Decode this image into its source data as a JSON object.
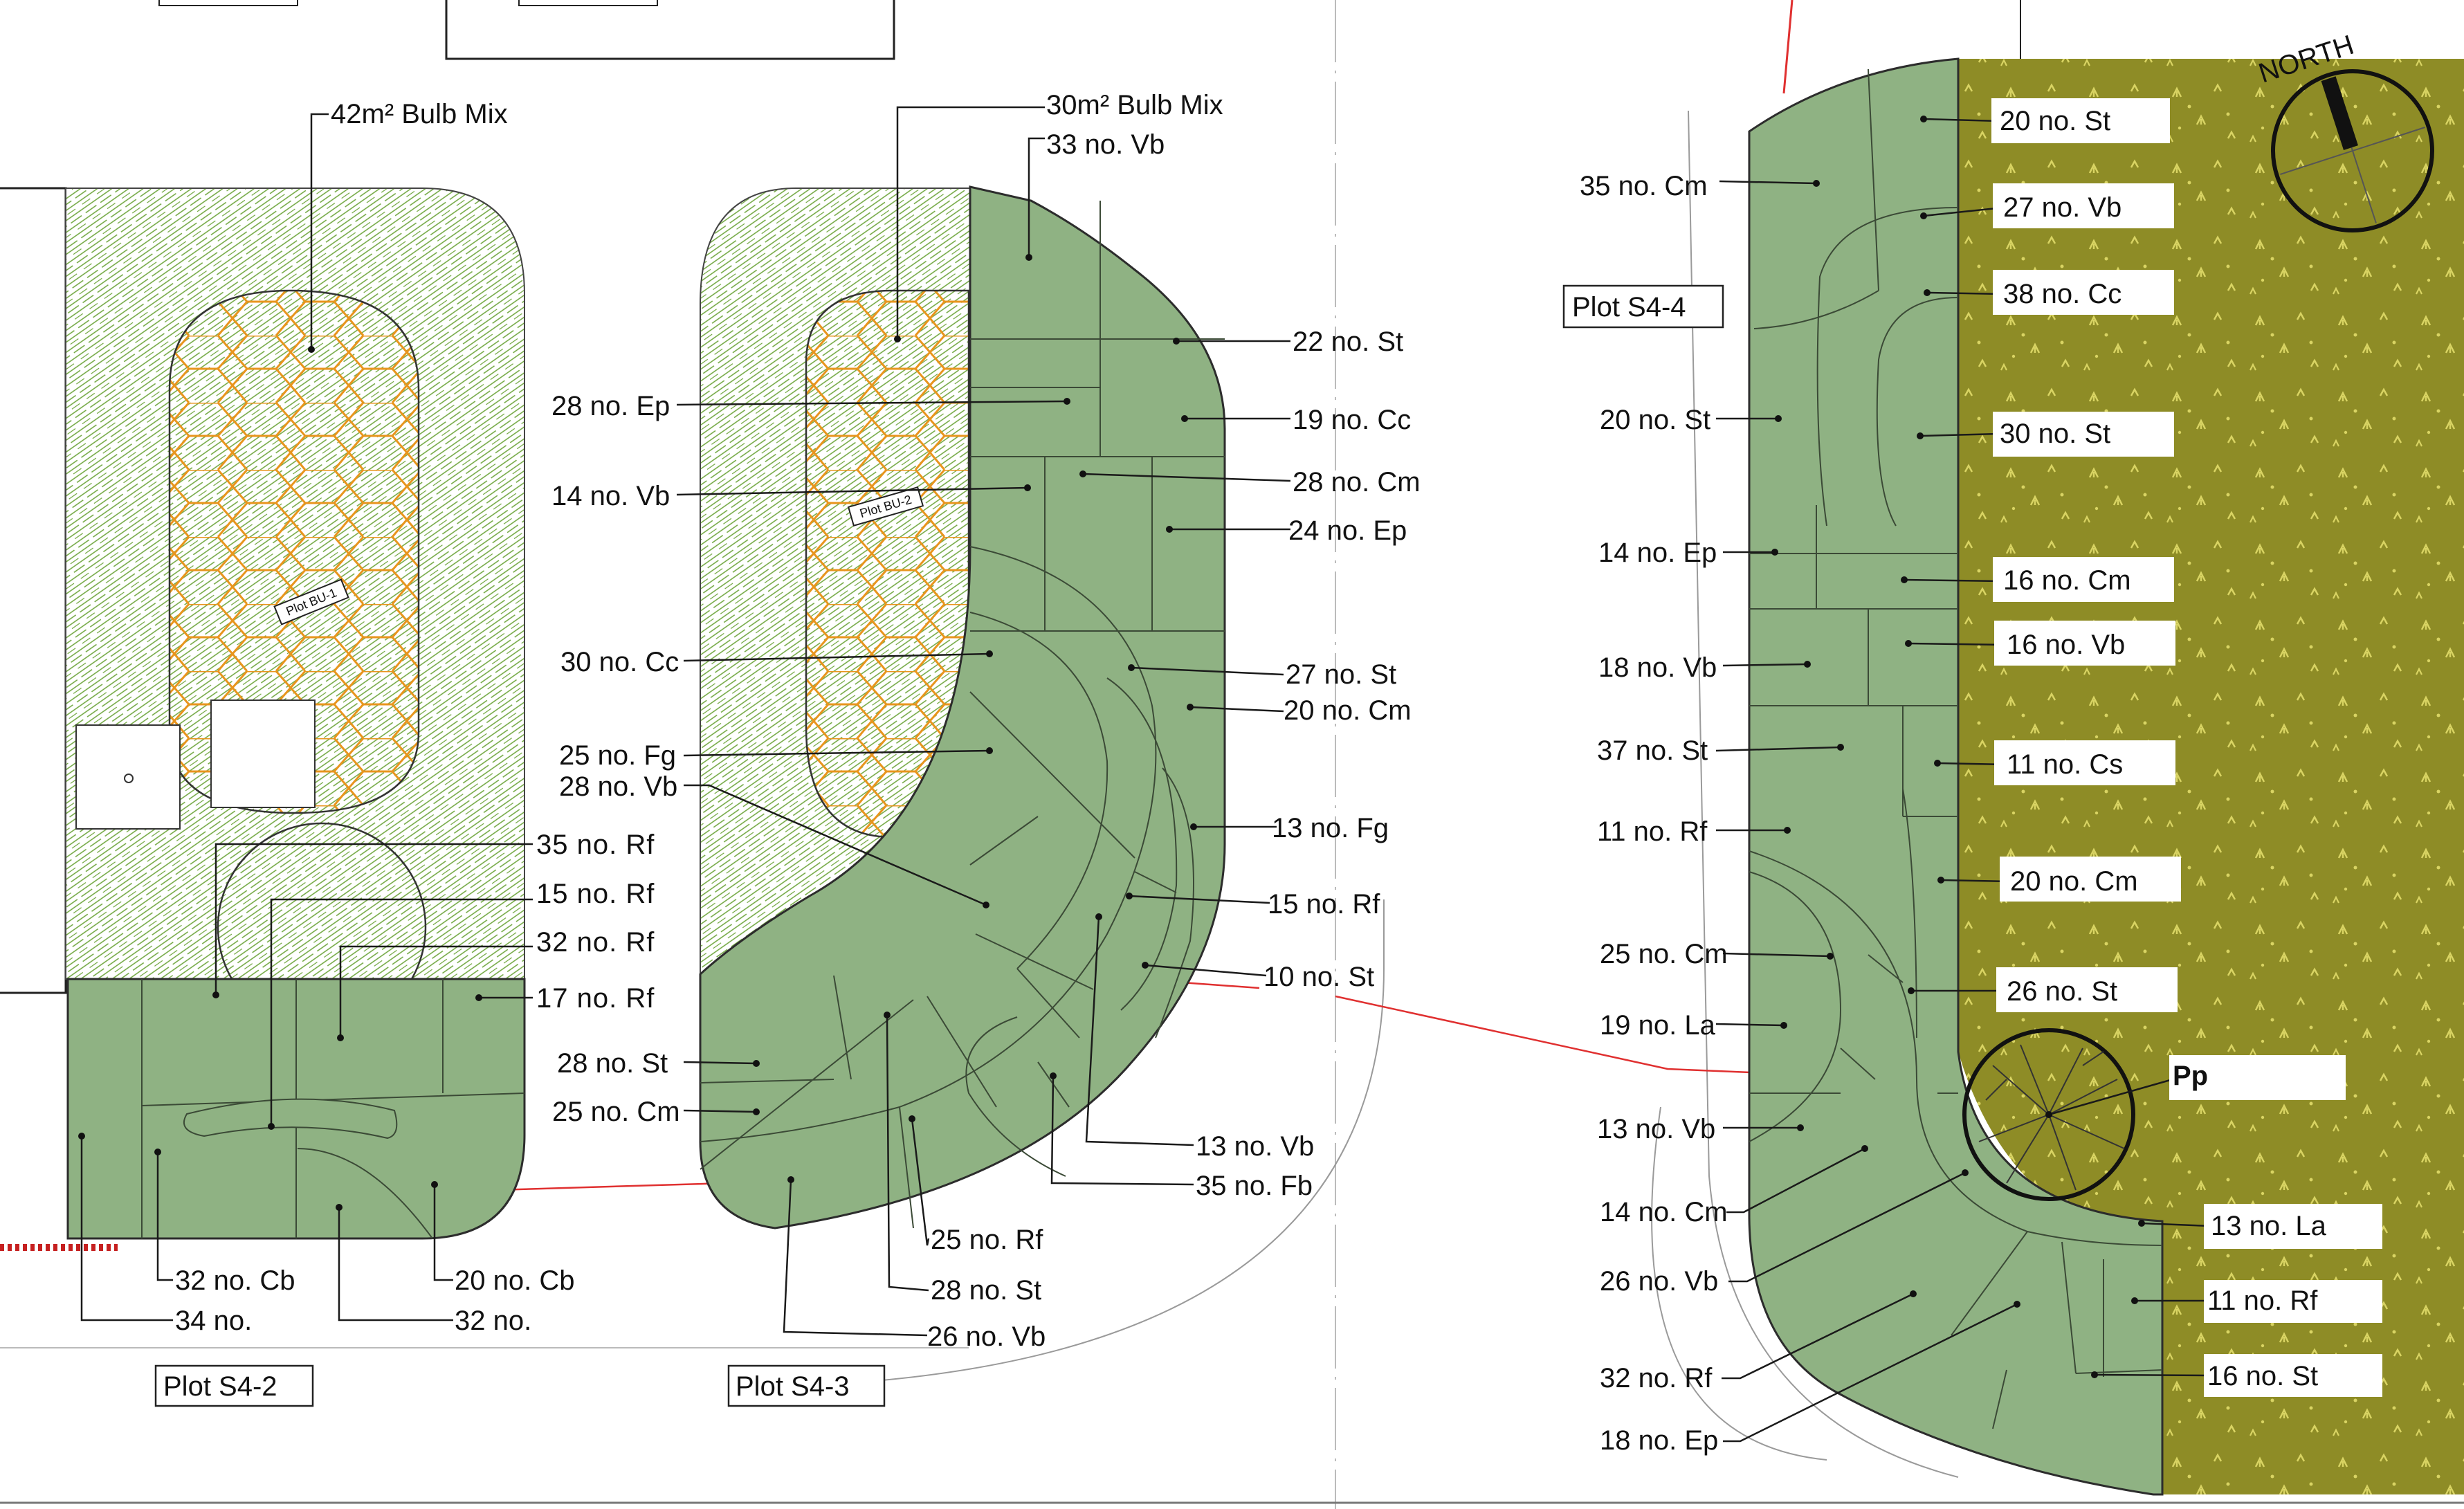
{
  "plots": {
    "s4_2": "Plot S4-2",
    "s4_3": "Plot S4-3",
    "s4_4": "Plot S4-4",
    "bu_1": "Plot BU-1",
    "bu_2": "Plot BU-2"
  },
  "north": "NORTH",
  "colors": {
    "planting_bed": "#8fb283",
    "meadow": "#8e8c26",
    "hatch": "#6ea53c",
    "bulb_grid": "#e8951e",
    "boundary_red": "#e03030"
  },
  "s4_2_labels": [
    "42m² Bulb Mix",
    "35  no. Rf",
    "15  no. Rf",
    "32  no. Rf",
    "17  no. Rf",
    "32 no. Cb",
    "20 no. Cb",
    "34 no.",
    "32 no."
  ],
  "s4_3_labels": [
    "30m² Bulb Mix",
    "33 no. Vb",
    "22 no. St",
    "28 no. Ep",
    "19 no. Cc",
    "28 no. Cm",
    "14 no. Vb",
    "24 no. Ep",
    "30 no. Cc",
    "27 no. St",
    "20 no. Cm",
    "25 no. Fg",
    "28 no. Vb",
    "13 no. Fg",
    "15 no. Rf",
    "10 no. St",
    "28 no. St",
    "25 no. Cm",
    "13 no. Vb",
    "35 no. Fb",
    "25 no. Rf",
    "28 no. St",
    "26 no. Vb"
  ],
  "s4_4_left_labels": [
    "35 no. Cm",
    "20 no. St",
    "14 no. Ep",
    "18 no. Vb",
    "37 no. St",
    "11 no. Rf",
    "25 no. Cm",
    "19 no. La",
    "13 no. Vb",
    "14 no. Cm",
    "26 no. Vb",
    "32 no. Rf",
    "18 no. Ep"
  ],
  "s4_4_right_labels": [
    "20 no. St",
    "27 no. Vb",
    "38 no. Cc",
    "30 no. St",
    "16 no. Cm",
    "16 no. Vb",
    "11 no. Cs",
    "20 no. Cm",
    "26 no. St",
    "Pp",
    "13 no. La",
    "11 no. Rf",
    "16 no. St"
  ]
}
